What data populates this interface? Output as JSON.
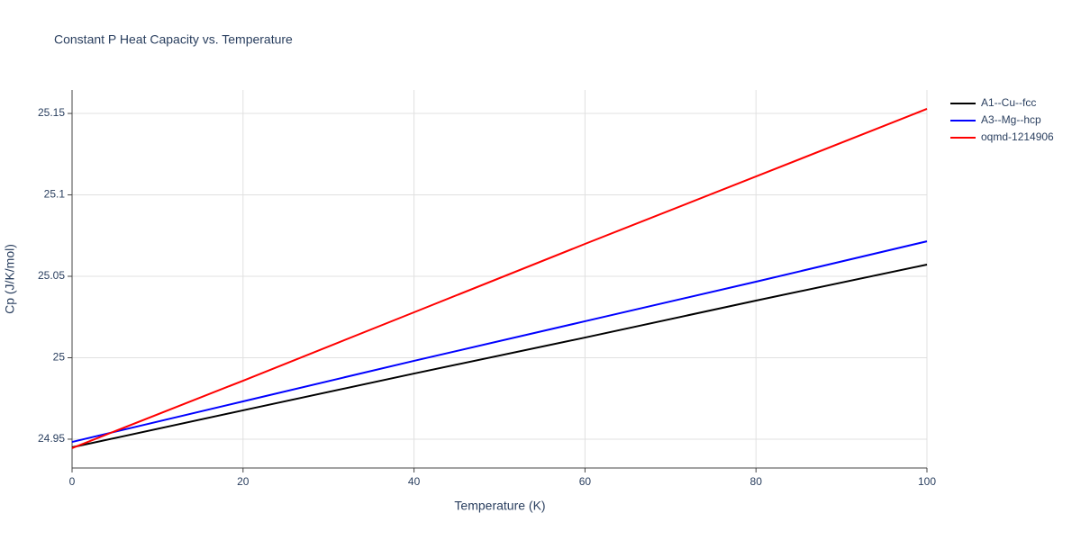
{
  "chart_data": {
    "type": "line",
    "title": "Constant P Heat Capacity vs. Temperature",
    "x_label": "Temperature (K)",
    "y_label": "Cp (J/K/mol)",
    "x": [
      0,
      20,
      40,
      60,
      80,
      100
    ],
    "series": [
      {
        "name": "A1--Cu--fcc",
        "color": "#000000",
        "values": [
          24.945,
          24.9677,
          24.9903,
          25.0124,
          25.0351,
          25.0572
        ]
      },
      {
        "name": "A3--Mg--hcp",
        "color": "#0000ff",
        "values": [
          24.9483,
          24.9732,
          24.9981,
          25.0224,
          25.0467,
          25.0715
        ]
      },
      {
        "name": "oqmd-1214906",
        "color": "#ff0000",
        "values": [
          24.9445,
          24.9859,
          25.0279,
          25.0699,
          25.1113,
          25.1528
        ]
      }
    ],
    "xlim": [
      0,
      100
    ],
    "xticks": [
      0,
      20,
      40,
      60,
      80,
      100
    ],
    "ylim": [
      24.9323,
      25.1644
    ],
    "yticks": [
      24.95,
      25,
      25.05,
      25.1,
      25.15
    ],
    "grid": true,
    "legend": "right"
  }
}
